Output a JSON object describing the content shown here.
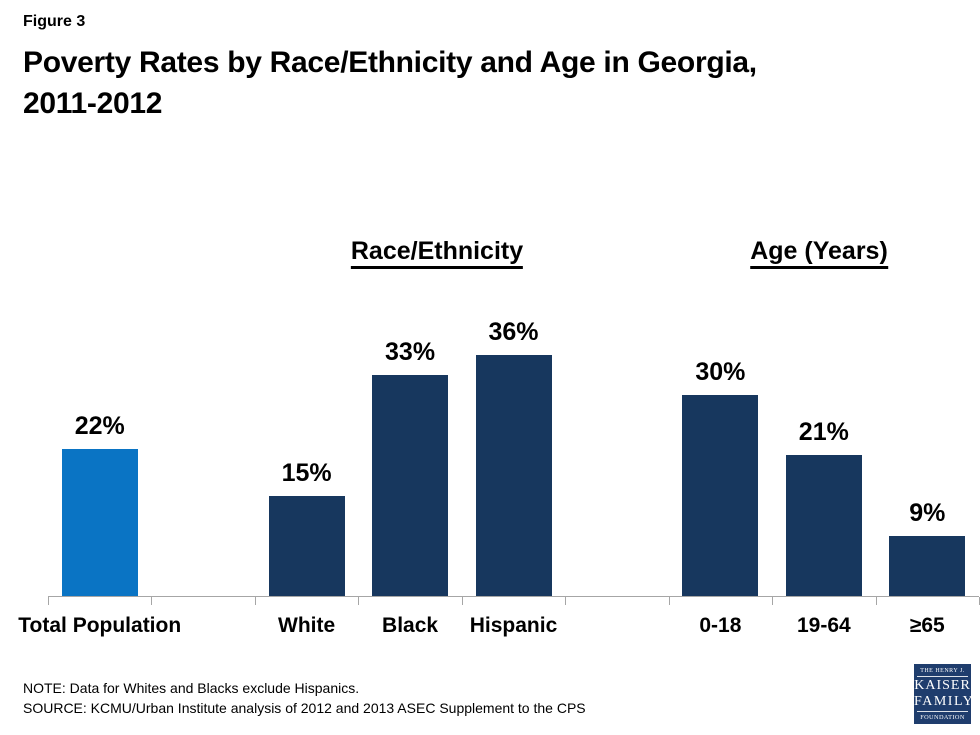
{
  "figure_label": "Figure 3",
  "title_line1": "Poverty Rates by Race/Ethnicity and Age in Georgia,",
  "title_line2": "2011-2012",
  "note": "NOTE: Data for Whites and Blacks exclude Hispanics.",
  "source": "SOURCE: KCMU/Urban Institute analysis of 2012 and 2013 ASEC Supplement to the CPS",
  "logo": {
    "line1": "THE HENRY J.",
    "line2": "KAISER",
    "line3": "FAMILY",
    "line4": "FOUNDATION"
  },
  "colors": {
    "accent_bar": "#0a74c4",
    "primary_bar": "#17375e",
    "axis": "#a6a6a6",
    "logo_bg": "#1f3d6d",
    "text": "#000000"
  },
  "chart_data": {
    "type": "bar",
    "title": "Poverty Rates by Race/Ethnicity and Age in Georgia, 2011-2012",
    "unit": "%",
    "xlabel": "",
    "ylabel": "",
    "ylim": [
      0,
      40
    ],
    "grid": false,
    "value_labels_shown": true,
    "y_axis_shown": false,
    "legend": "none",
    "groups": [
      {
        "label": "",
        "categories": [
          "Total Population"
        ],
        "values": [
          22
        ],
        "color": "#0a74c4"
      },
      {
        "label": "Race/Ethnicity",
        "categories": [
          "White",
          "Black",
          "Hispanic"
        ],
        "values": [
          15,
          33,
          36
        ],
        "color": "#17375e"
      },
      {
        "label": "Age (Years)",
        "categories": [
          "0-18",
          "19-64",
          "≥65"
        ],
        "values": [
          30,
          21,
          9
        ],
        "color": "#17375e"
      }
    ]
  }
}
